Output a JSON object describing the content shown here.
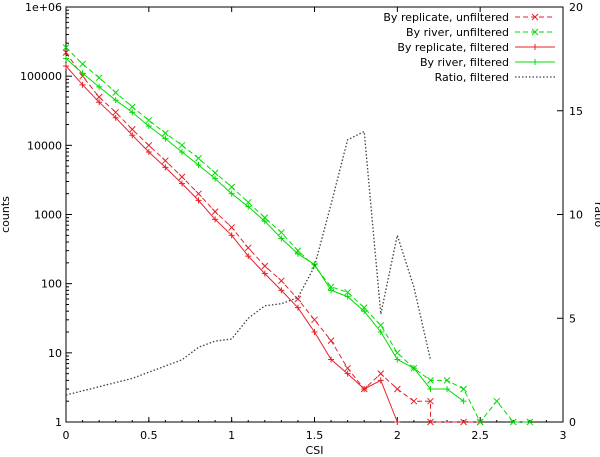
{
  "chart_data": {
    "type": "line",
    "xlabel": "CSI",
    "ylabel": "counts",
    "y2label": "ratio",
    "xlim": [
      0,
      3
    ],
    "ylim": [
      1,
      1000000
    ],
    "y2lim": [
      0,
      20
    ],
    "yscale": "log",
    "y2scale": "linear",
    "xticks": [
      "0",
      "0.5",
      "1",
      "1.5",
      "2",
      "2.5",
      "3"
    ],
    "xtick_values": [
      0,
      0.5,
      1,
      1.5,
      2,
      2.5,
      3
    ],
    "yticks": [
      "1",
      "10",
      "100",
      "1000",
      "10000",
      "100000",
      "1e+06"
    ],
    "ytick_values": [
      1,
      10,
      100,
      1000,
      10000,
      100000,
      1000000
    ],
    "y2ticks": [
      "0",
      "5",
      "10",
      "15",
      "20"
    ],
    "y2tick_values": [
      0,
      5,
      10,
      15,
      20
    ],
    "legend_position": "top-right",
    "grid": false,
    "series": [
      {
        "name": "By replicate, unfiltered",
        "color": "#e8202a",
        "dash": "dashed",
        "marker": "x",
        "axis": "y",
        "x": [
          0,
          0.1,
          0.2,
          0.3,
          0.4,
          0.5,
          0.6,
          0.7,
          0.8,
          0.9,
          1.0,
          1.1,
          1.2,
          1.3,
          1.4,
          1.5,
          1.6,
          1.7,
          1.8,
          1.9,
          2.0,
          2.1,
          2.2,
          2.2,
          2.4,
          2.5
        ],
        "y": [
          220000,
          100000,
          50000,
          30000,
          17000,
          10000,
          6000,
          3500,
          2000,
          1100,
          650,
          330,
          180,
          110,
          60,
          30,
          15,
          6,
          3,
          5,
          3,
          2,
          2,
          1,
          1,
          1
        ]
      },
      {
        "name": "By river, unfiltered",
        "color": "#00dd00",
        "dash": "dashed",
        "marker": "x",
        "axis": "y",
        "x": [
          0,
          0.1,
          0.2,
          0.3,
          0.4,
          0.5,
          0.6,
          0.7,
          0.8,
          0.9,
          1.0,
          1.1,
          1.2,
          1.3,
          1.4,
          1.5,
          1.6,
          1.7,
          1.8,
          1.9,
          2.0,
          2.1,
          2.2,
          2.3,
          2.4,
          2.5,
          2.6,
          2.7,
          2.8
        ],
        "y": [
          260000,
          150000,
          95000,
          58000,
          36000,
          23000,
          15000,
          10000,
          6500,
          4000,
          2500,
          1500,
          900,
          550,
          300,
          180,
          90,
          75,
          45,
          25,
          10,
          6,
          4,
          4,
          3,
          1,
          2,
          1,
          1
        ]
      },
      {
        "name": "By replicate, filtered",
        "color": "#e8202a",
        "dash": "solid",
        "marker": "+",
        "axis": "y",
        "x": [
          0,
          0.1,
          0.2,
          0.3,
          0.4,
          0.5,
          0.6,
          0.7,
          0.8,
          0.9,
          1.0,
          1.1,
          1.2,
          1.3,
          1.4,
          1.5,
          1.6,
          1.7,
          1.8,
          1.9,
          2.0
        ],
        "y": [
          140000,
          75000,
          42000,
          25000,
          14000,
          8000,
          4800,
          2800,
          1600,
          850,
          500,
          250,
          140,
          80,
          45,
          20,
          8,
          5,
          3,
          4,
          1
        ]
      },
      {
        "name": "By river, filtered",
        "color": "#00dd00",
        "dash": "solid",
        "marker": "+",
        "axis": "y",
        "x": [
          0,
          0.1,
          0.2,
          0.3,
          0.4,
          0.5,
          0.6,
          0.7,
          0.8,
          0.9,
          1.0,
          1.1,
          1.2,
          1.3,
          1.4,
          1.5,
          1.6,
          1.7,
          1.8,
          1.9,
          2.0,
          2.1,
          2.2,
          2.3,
          2.4
        ],
        "y": [
          180000,
          110000,
          70000,
          45000,
          30000,
          19000,
          12500,
          8000,
          5200,
          3300,
          2000,
          1300,
          800,
          450,
          270,
          190,
          80,
          65,
          40,
          20,
          8,
          6,
          3,
          3,
          2
        ]
      },
      {
        "name": "Ratio, filtered",
        "color": "#404040",
        "dash": "dotted",
        "marker": "none",
        "axis": "y2",
        "x": [
          0,
          0.1,
          0.2,
          0.3,
          0.4,
          0.5,
          0.6,
          0.7,
          0.8,
          0.9,
          1.0,
          1.1,
          1.2,
          1.3,
          1.4,
          1.5,
          1.6,
          1.7,
          1.8,
          1.9,
          2.0,
          2.1,
          2.2
        ],
        "y": [
          1.3,
          1.5,
          1.7,
          1.9,
          2.1,
          2.4,
          2.7,
          3.0,
          3.6,
          3.9,
          4.0,
          5.0,
          5.6,
          5.7,
          6.0,
          7.5,
          10.5,
          13.6,
          14.0,
          5.2,
          9.0,
          6.5,
          3.0
        ]
      }
    ]
  }
}
